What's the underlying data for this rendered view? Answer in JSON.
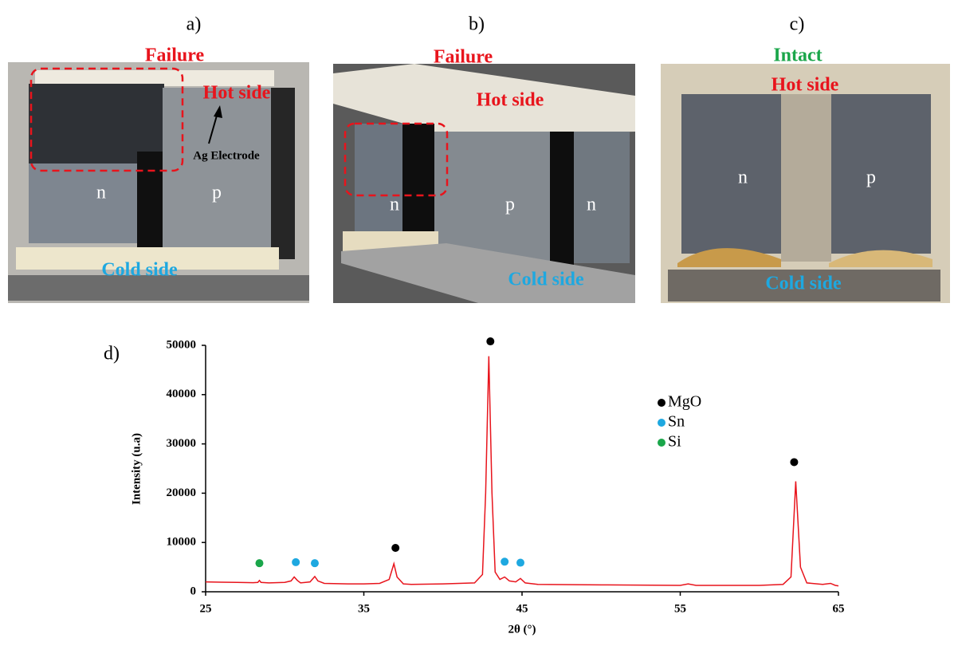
{
  "photos": [
    {
      "label": "a)",
      "status": "Failure",
      "status_color": "#e8141c",
      "texts": [
        "Hot side",
        "Ag Electrode",
        "n",
        "p",
        "Cold side"
      ]
    },
    {
      "label": "b)",
      "status": "Failure",
      "status_color": "#e8141c",
      "texts": [
        "Hot side",
        "n",
        "p",
        "n",
        "Cold side"
      ]
    },
    {
      "label": "c)",
      "status": "Intact",
      "status_color": "#1aa64a",
      "texts": [
        "Hot side",
        "n",
        "p",
        "Cold side"
      ]
    }
  ],
  "chart_data": {
    "type": "line",
    "panel_label": "d)",
    "ylabel": "Intensity (u.a)",
    "xlabel": "2θ (°)",
    "color": "#e8141c",
    "x": [
      25,
      26,
      27,
      28,
      28.3,
      28.4,
      28.5,
      29,
      30,
      30.4,
      30.6,
      30.8,
      31,
      31.6,
      31.9,
      32.1,
      32.5,
      34,
      35,
      36,
      36.6,
      36.9,
      37.1,
      37.5,
      38,
      40,
      42,
      42.5,
      42.7,
      42.9,
      43.1,
      43.3,
      43.6,
      43.9,
      44.2,
      44.6,
      44.9,
      45.2,
      46,
      50,
      55,
      55.5,
      56,
      60,
      61.5,
      62,
      62.3,
      62.6,
      63,
      64,
      64.5,
      64.8,
      65
    ],
    "values": [
      2000,
      1950,
      1900,
      1850,
      1900,
      2300,
      1900,
      1800,
      1900,
      2200,
      3000,
      2300,
      1800,
      2000,
      3100,
      2200,
      1700,
      1600,
      1600,
      1700,
      2500,
      5700,
      3000,
      1600,
      1500,
      1600,
      1800,
      3500,
      20000,
      47800,
      20000,
      4000,
      2500,
      3000,
      2200,
      2000,
      2700,
      1800,
      1500,
      1400,
      1300,
      1600,
      1300,
      1300,
      1500,
      3000,
      22400,
      5000,
      1800,
      1500,
      1700,
      1300,
      1200
    ],
    "markers": [
      {
        "name": "MgO",
        "color": "#000000",
        "x": [
          37,
          43,
          62.2
        ],
        "values": [
          8900,
          50800,
          26300
        ]
      },
      {
        "name": "Sn",
        "color": "#1ea8e0",
        "x": [
          30.7,
          31.9,
          43.9,
          44.9
        ],
        "values": [
          6000,
          5800,
          6100,
          5900
        ]
      },
      {
        "name": "Si",
        "color": "#1aa64a",
        "x": [
          28.4
        ],
        "values": [
          5800
        ]
      }
    ],
    "xlim": [
      25,
      65
    ],
    "ylim": [
      0,
      50000
    ],
    "xticks": [
      25,
      35,
      45,
      55,
      65
    ],
    "yticks": [
      0,
      10000,
      20000,
      30000,
      40000,
      50000
    ]
  }
}
